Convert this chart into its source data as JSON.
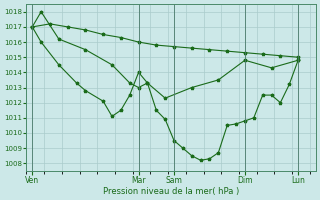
{
  "xlabel": "Pression niveau de la mer( hPa )",
  "background_color": "#cce8e8",
  "grid_color": "#aacccc",
  "line_color": "#1a6b1a",
  "marker_color": "#1a6b1a",
  "ylim": [
    1007.5,
    1018.5
  ],
  "yticks": [
    1008,
    1009,
    1010,
    1011,
    1012,
    1013,
    1014,
    1015,
    1016,
    1017,
    1018
  ],
  "xtick_labels": [
    "Ven",
    "Mar",
    "Sam",
    "Dim",
    "Lun"
  ],
  "xtick_positions": [
    0,
    36,
    48,
    72,
    90
  ],
  "xlim": [
    -2,
    96
  ],
  "series1_x": [
    0,
    6,
    12,
    18,
    24,
    30,
    36,
    42,
    48,
    54,
    60,
    66,
    72,
    78,
    84,
    90
  ],
  "series1_y": [
    1017.0,
    1017.2,
    1017.0,
    1016.8,
    1016.5,
    1016.3,
    1016.0,
    1015.8,
    1015.7,
    1015.6,
    1015.5,
    1015.4,
    1015.3,
    1015.2,
    1015.1,
    1015.0
  ],
  "series2_x": [
    0,
    3,
    9,
    18,
    27,
    33,
    36,
    39,
    45,
    54,
    63,
    72,
    81,
    90
  ],
  "series2_y": [
    1017.0,
    1018.0,
    1016.2,
    1015.5,
    1014.5,
    1013.3,
    1013.0,
    1013.3,
    1012.3,
    1013.0,
    1013.5,
    1014.8,
    1014.3,
    1014.8
  ],
  "series3_x": [
    0,
    3,
    9,
    15,
    18,
    24,
    27,
    30,
    33,
    36,
    39,
    42,
    45,
    48,
    51,
    54,
    57,
    60,
    63,
    66,
    69,
    72,
    75,
    78,
    81,
    84,
    87,
    90
  ],
  "series3_y": [
    1017.0,
    1016.0,
    1014.5,
    1013.3,
    1012.8,
    1012.1,
    1011.1,
    1011.5,
    1012.5,
    1014.0,
    1013.3,
    1011.5,
    1010.9,
    1009.5,
    1009.0,
    1008.5,
    1008.2,
    1008.3,
    1008.7,
    1010.5,
    1010.6,
    1010.8,
    1011.0,
    1012.5,
    1012.5,
    1012.0,
    1013.2,
    1014.8
  ]
}
